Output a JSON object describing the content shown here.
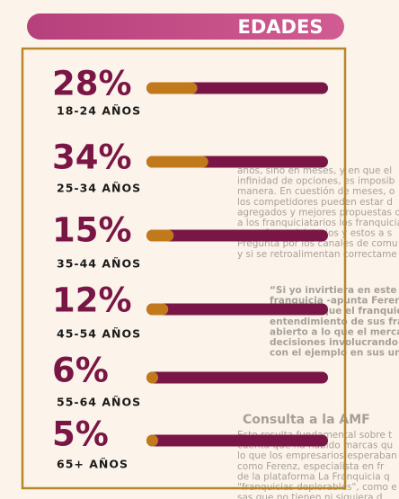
{
  "chart_data": {
    "type": "bar",
    "title": "EDADES",
    "categories": [
      "18-24 AÑOS",
      "25-34 AÑOS",
      "35-44 AÑOS",
      "45-54 AÑOS",
      "55-64 AÑOS",
      "65+ AÑOS"
    ],
    "values": [
      28,
      34,
      15,
      12,
      6,
      5
    ],
    "value_labels": [
      "28%",
      "34%",
      "15%",
      "12%",
      "6%",
      "5%"
    ],
    "xlim": [
      0,
      100
    ],
    "color": "#c07a1c",
    "track_color": "#7a1646"
  },
  "background_text": {
    "paragraph_1": [
      "años, sino en meses, y en que el",
      "infinidad de opciones, es imposib",
      "manera. En cuestión de meses, o",
      "los competidores pueden estar d",
      "agregados y mejores propuestas d",
      "a los franquiciatarios los franquiciante",
      "a sus franquiciatarios y estos a s",
      "Pregunta por los canales de comu",
      "y si se retroalimentan correctame"
    ],
    "quote": [
      "“Si yo invirtiera en este mom",
      "franquicia -apunta Ferenz Feh",
      "una en la que el franquiciante",
      "entendimiento de sus franquici",
      "abierto a lo que el mercado le",
      "decisiones involucrando a la re",
      "con el ejemplo en sus unid"
    ],
    "heading": "Consulta a la AMF",
    "paragraph_2": [
      "Esto resulta fundamental sobre t",
      "cuenta que ha habido marcas qu",
      "lo que los empresarios esperaban",
      "como Ferenz, especialista en fr",
      "de la plataforma La Franquicia q",
      "\"franquicias deplorables\", como e",
      "sas que no tienen ni siquiera d",
      "que no tienen un historial y no e"
    ]
  }
}
